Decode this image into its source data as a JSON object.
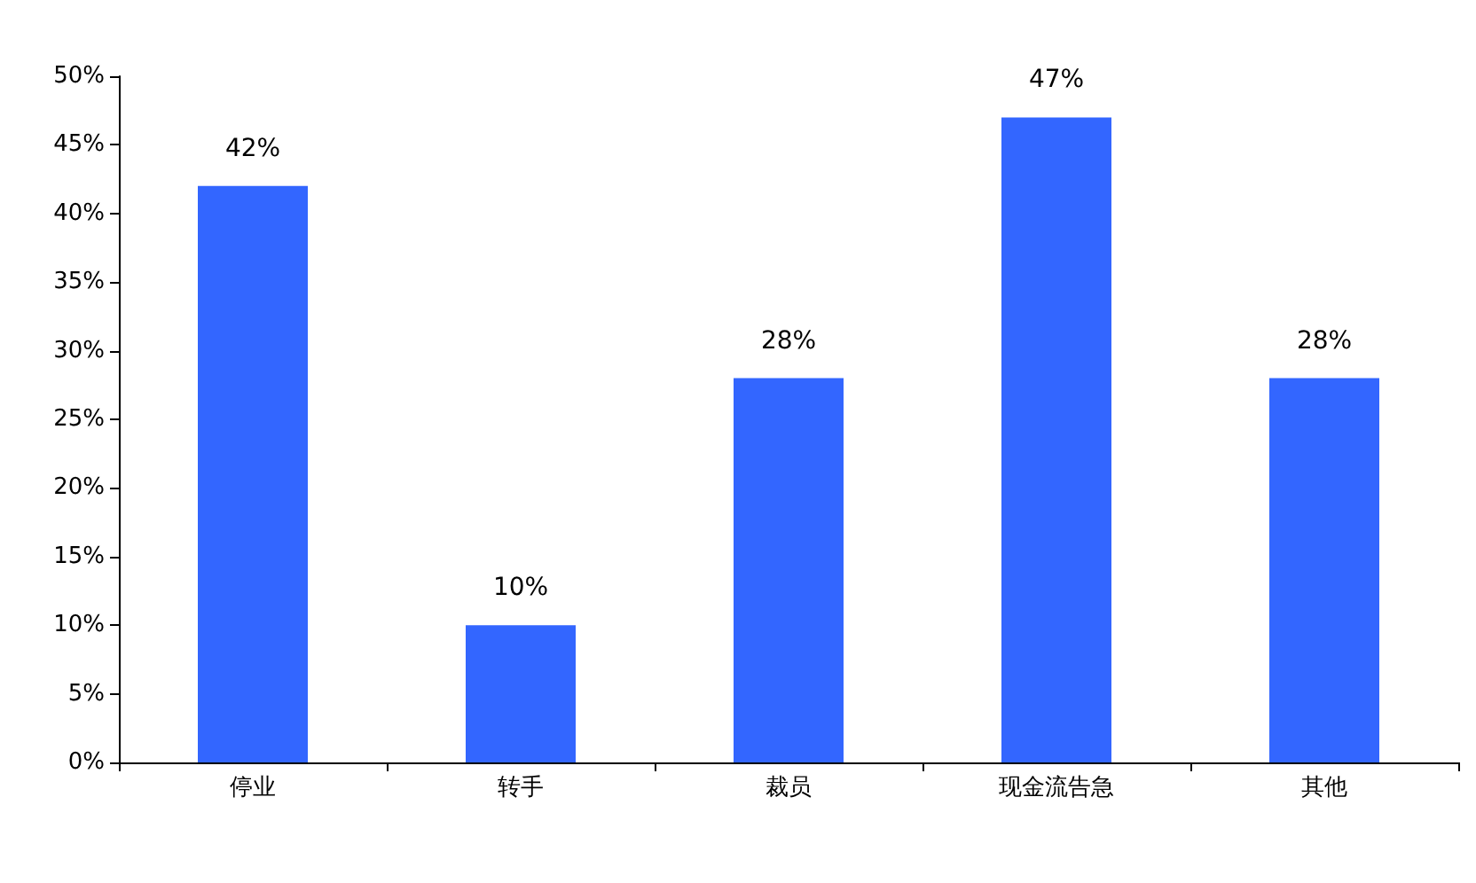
{
  "chart_data": {
    "type": "bar",
    "categories": [
      "停业",
      "转手",
      "裁员",
      "现金流告急",
      "其他"
    ],
    "values": [
      42,
      10,
      28,
      47,
      28
    ],
    "value_labels": [
      "42%",
      "10%",
      "28%",
      "47%",
      "28%"
    ],
    "color": "#3366ff",
    "ylim": [
      0,
      50
    ],
    "yticks": [
      {
        "value": 0,
        "label": "0%"
      },
      {
        "value": 5,
        "label": "5%"
      },
      {
        "value": 10,
        "label": "10%"
      },
      {
        "value": 15,
        "label": "15%"
      },
      {
        "value": 20,
        "label": "20%"
      },
      {
        "value": 25,
        "label": "25%"
      },
      {
        "value": 30,
        "label": "30%"
      },
      {
        "value": 35,
        "label": "35%"
      },
      {
        "value": 40,
        "label": "40%"
      },
      {
        "value": 45,
        "label": "45%"
      },
      {
        "value": 50,
        "label": "50%"
      }
    ],
    "grid": false
  }
}
